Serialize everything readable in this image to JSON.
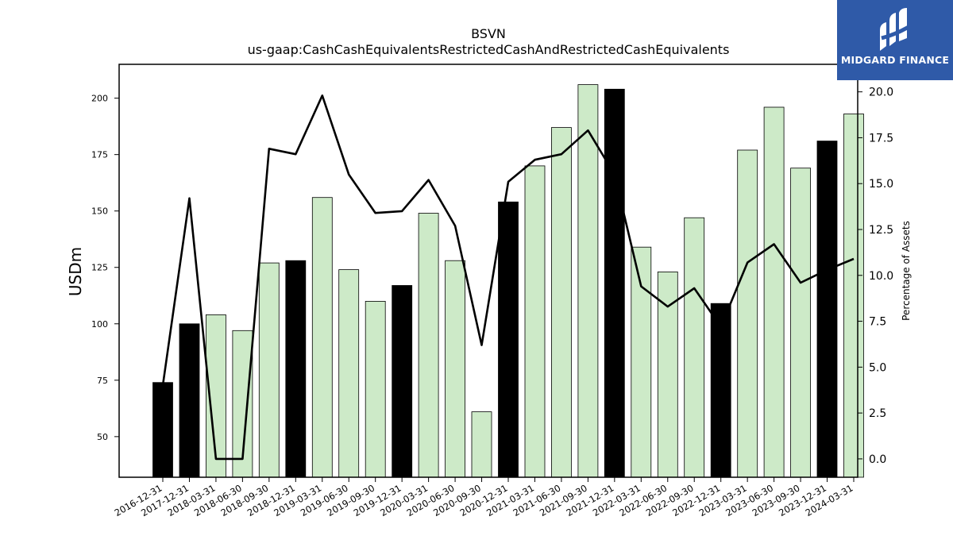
{
  "chart_data": {
    "type": "bar",
    "title": "BSVN",
    "subtitle": "us-gaap:CashCashEquivalentsRestrictedCashAndRestrictedCashEquivalents",
    "ylabel": "USDm",
    "y2label": "Percentage of Assets",
    "ylim": [
      32,
      215
    ],
    "y2lim": [
      -1.0,
      21.5
    ],
    "yticks": [
      50,
      75,
      100,
      125,
      150,
      175,
      200
    ],
    "y2ticks": [
      0.0,
      2.5,
      5.0,
      7.5,
      10.0,
      12.5,
      15.0,
      17.5,
      20.0
    ],
    "grid": false,
    "categories": [
      "2016-12-31",
      "2017-12-31",
      "2018-03-31",
      "2018-06-30",
      "2018-09-30",
      "2018-12-31",
      "2019-03-31",
      "2019-06-30",
      "2019-09-30",
      "2019-12-31",
      "2020-03-31",
      "2020-06-30",
      "2020-09-30",
      "2020-12-31",
      "2021-03-31",
      "2021-06-30",
      "2021-09-30",
      "2021-12-31",
      "2022-03-31",
      "2022-06-30",
      "2022-09-30",
      "2022-12-31",
      "2023-03-31",
      "2023-06-30",
      "2023-09-30",
      "2023-12-31",
      "2024-03-31"
    ],
    "series": [
      {
        "kind": "bar",
        "axis": "left",
        "values": [
          74,
          100,
          104,
          97,
          127,
          128,
          156,
          124,
          110,
          117,
          149,
          128,
          61,
          154,
          170,
          187,
          206,
          204,
          134,
          123,
          147,
          109,
          177,
          196,
          169,
          181,
          193
        ],
        "year_end": [
          true,
          true,
          false,
          false,
          false,
          true,
          false,
          false,
          false,
          true,
          false,
          false,
          false,
          true,
          false,
          false,
          false,
          true,
          false,
          false,
          false,
          true,
          false,
          false,
          false,
          true,
          false
        ]
      },
      {
        "kind": "line",
        "axis": "right",
        "values": [
          4.0,
          14.2,
          0.0,
          0.0,
          16.9,
          16.6,
          19.8,
          15.5,
          13.4,
          13.5,
          15.2,
          12.7,
          6.2,
          15.1,
          16.3,
          16.6,
          17.9,
          15.5,
          9.4,
          8.3,
          9.3,
          7.2,
          10.7,
          11.7,
          9.6,
          10.3,
          10.9
        ]
      }
    ],
    "colors": {
      "year_end_bar": "#000000",
      "quarter_bar": "#cdeac8",
      "bar_edge": "#000000",
      "line": "#000000"
    }
  },
  "logo": {
    "text": "MIDGARD FINANCE",
    "background": "#2f5aa8"
  }
}
